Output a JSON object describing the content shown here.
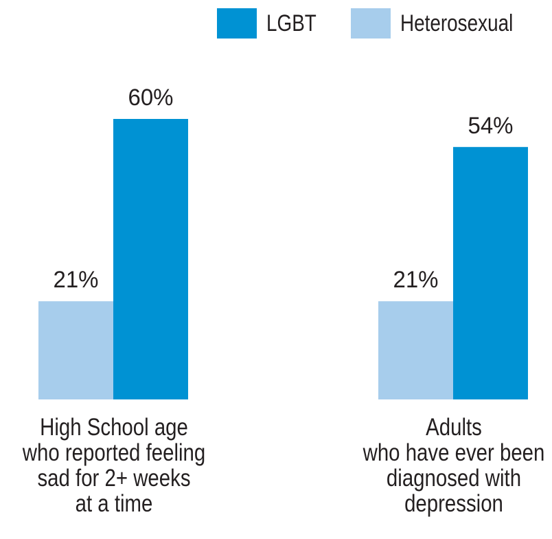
{
  "chart_data": {
    "type": "bar",
    "title": "",
    "xlabel": "",
    "ylabel": "",
    "ylim": [
      0,
      70
    ],
    "legend_position": "top",
    "grid": false,
    "categories": [
      [
        "High School age",
        "who reported feeling",
        "sad for 2+ weeks",
        "at a time"
      ],
      [
        "Adults",
        "who have ever been",
        "diagnosed with",
        "depression"
      ]
    ],
    "series": [
      {
        "name": "Heterosexual",
        "color": "#a7cdec",
        "values": [
          21,
          21
        ],
        "labels": [
          "21%",
          "21%"
        ]
      },
      {
        "name": "LGBT",
        "color": "#0092d3",
        "values": [
          60,
          54
        ],
        "labels": [
          "60%",
          "54%"
        ]
      }
    ]
  }
}
